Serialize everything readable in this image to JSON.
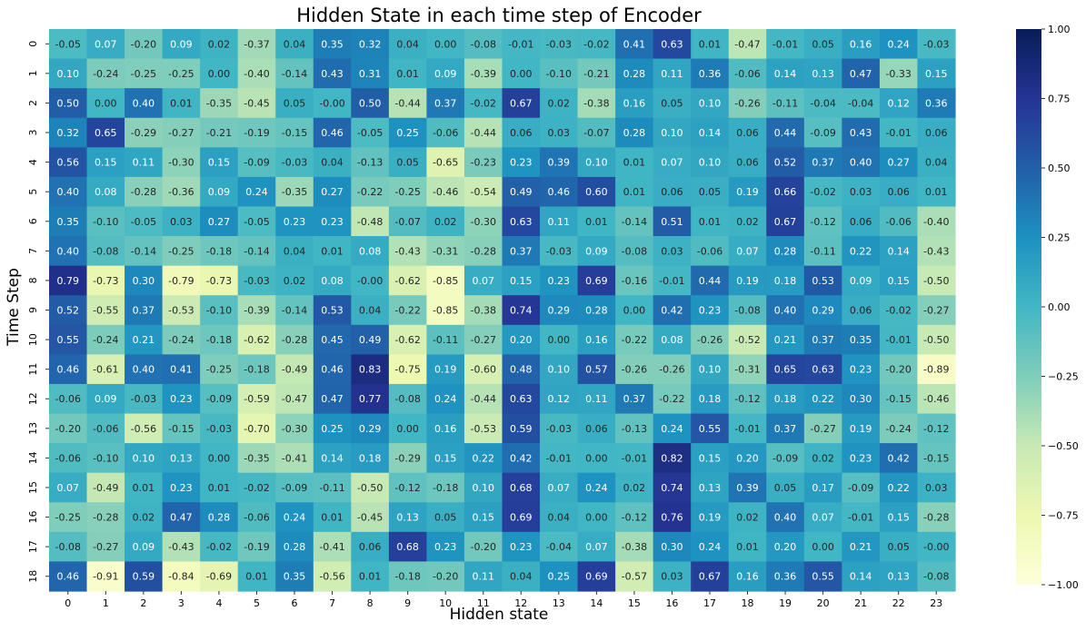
{
  "chart_data": {
    "type": "heatmap",
    "title": "Hidden State in each time step of Encoder",
    "xlabel": "Hidden state",
    "ylabel": "Time Step",
    "x_categories": [
      "0",
      "1",
      "2",
      "3",
      "4",
      "5",
      "6",
      "7",
      "8",
      "9",
      "10",
      "11",
      "12",
      "13",
      "14",
      "15",
      "16",
      "17",
      "18",
      "19",
      "20",
      "21",
      "22",
      "23"
    ],
    "y_categories": [
      "0",
      "1",
      "2",
      "3",
      "4",
      "5",
      "6",
      "7",
      "8",
      "9",
      "10",
      "11",
      "12",
      "13",
      "14",
      "15",
      "16",
      "17",
      "18"
    ],
    "colormap": "YlGnBu",
    "vmin": -1.0,
    "vmax": 1.0,
    "colorbar_ticks": [
      "1.00",
      "0.75",
      "0.50",
      "0.25",
      "0.00",
      "−0.25",
      "−0.50",
      "−0.75",
      "−1.00"
    ],
    "colorbar_tick_values": [
      1.0,
      0.75,
      0.5,
      0.25,
      0.0,
      -0.25,
      -0.5,
      -0.75,
      -1.0
    ],
    "values": [
      [
        -0.05,
        0.07,
        -0.2,
        0.09,
        0.02,
        -0.37,
        0.04,
        0.35,
        0.32,
        0.04,
        0.0,
        -0.08,
        -0.01,
        -0.03,
        -0.02,
        0.41,
        0.63,
        0.01,
        -0.47,
        -0.01,
        0.05,
        0.16,
        0.24,
        -0.03
      ],
      [
        0.1,
        -0.24,
        -0.25,
        -0.25,
        0.0,
        -0.4,
        -0.14,
        0.43,
        0.31,
        0.01,
        0.09,
        -0.39,
        0.0,
        -0.1,
        -0.21,
        0.28,
        0.11,
        0.36,
        -0.06,
        0.14,
        0.13,
        0.47,
        -0.33,
        0.15
      ],
      [
        0.5,
        0.0,
        0.4,
        0.01,
        -0.35,
        -0.45,
        0.05,
        -0.0,
        0.5,
        -0.44,
        0.37,
        -0.02,
        0.67,
        0.02,
        -0.38,
        0.16,
        0.05,
        0.1,
        -0.26,
        -0.11,
        -0.04,
        -0.04,
        0.12,
        0.36
      ],
      [
        0.32,
        0.65,
        -0.29,
        -0.27,
        -0.21,
        -0.19,
        -0.15,
        0.46,
        -0.05,
        0.25,
        -0.06,
        -0.44,
        0.06,
        0.03,
        -0.07,
        0.28,
        0.1,
        0.14,
        0.06,
        0.44,
        -0.09,
        0.43,
        -0.01,
        0.06
      ],
      [
        0.56,
        0.15,
        0.11,
        -0.3,
        0.15,
        -0.09,
        -0.03,
        0.04,
        -0.13,
        0.05,
        -0.65,
        -0.23,
        0.23,
        0.39,
        0.1,
        0.01,
        0.07,
        0.1,
        0.06,
        0.52,
        0.37,
        0.4,
        0.27,
        0.04
      ],
      [
        0.4,
        0.08,
        -0.28,
        -0.36,
        0.09,
        0.24,
        -0.35,
        0.27,
        -0.22,
        -0.25,
        -0.46,
        -0.54,
        0.49,
        0.46,
        0.6,
        0.01,
        0.06,
        0.05,
        0.19,
        0.66,
        -0.02,
        0.03,
        0.06,
        0.01
      ],
      [
        0.35,
        -0.1,
        -0.05,
        0.03,
        0.27,
        -0.05,
        0.23,
        0.23,
        -0.48,
        -0.07,
        0.02,
        -0.3,
        0.63,
        0.11,
        0.01,
        -0.14,
        0.51,
        0.01,
        0.02,
        0.67,
        -0.12,
        0.06,
        -0.06,
        -0.4
      ],
      [
        0.4,
        -0.08,
        -0.14,
        -0.25,
        -0.18,
        -0.14,
        0.04,
        0.01,
        0.08,
        -0.43,
        -0.31,
        -0.28,
        0.37,
        -0.03,
        0.09,
        -0.08,
        0.03,
        -0.06,
        0.07,
        0.28,
        -0.11,
        0.22,
        0.14,
        -0.43
      ],
      [
        0.79,
        -0.73,
        0.3,
        -0.79,
        -0.73,
        -0.03,
        0.02,
        0.08,
        -0.0,
        -0.62,
        -0.85,
        0.07,
        0.15,
        0.23,
        0.69,
        -0.16,
        -0.01,
        0.44,
        0.19,
        0.18,
        0.53,
        0.09,
        0.15,
        -0.5
      ],
      [
        0.52,
        -0.55,
        0.37,
        -0.53,
        -0.1,
        -0.39,
        -0.14,
        0.53,
        0.04,
        -0.22,
        -0.85,
        -0.38,
        0.74,
        0.29,
        0.28,
        0.0,
        0.42,
        0.23,
        -0.08,
        0.4,
        0.29,
        0.06,
        -0.02,
        -0.27
      ],
      [
        0.55,
        -0.24,
        0.21,
        -0.24,
        -0.18,
        -0.62,
        -0.28,
        0.45,
        0.49,
        -0.62,
        -0.11,
        -0.27,
        0.2,
        0.0,
        0.16,
        -0.22,
        0.08,
        -0.26,
        -0.52,
        0.21,
        0.37,
        0.35,
        -0.01,
        -0.5
      ],
      [
        0.46,
        -0.61,
        0.4,
        0.41,
        -0.25,
        -0.18,
        -0.49,
        0.46,
        0.83,
        -0.75,
        0.19,
        -0.6,
        0.48,
        0.1,
        0.57,
        -0.26,
        -0.26,
        0.1,
        -0.31,
        0.65,
        0.63,
        0.23,
        -0.2,
        -0.89
      ],
      [
        -0.06,
        0.09,
        -0.03,
        0.23,
        -0.09,
        -0.59,
        -0.47,
        0.47,
        0.77,
        -0.08,
        0.24,
        -0.44,
        0.63,
        0.12,
        0.11,
        0.37,
        -0.22,
        0.18,
        -0.12,
        0.18,
        0.22,
        0.3,
        -0.15,
        -0.46
      ],
      [
        -0.2,
        -0.06,
        -0.56,
        -0.15,
        -0.03,
        -0.7,
        -0.3,
        0.25,
        0.29,
        0.0,
        0.16,
        -0.53,
        0.59,
        -0.03,
        0.06,
        -0.13,
        0.24,
        0.55,
        -0.01,
        0.37,
        -0.27,
        0.19,
        -0.24,
        -0.12
      ],
      [
        -0.06,
        -0.1,
        0.1,
        0.13,
        0.0,
        -0.35,
        -0.41,
        0.14,
        0.18,
        -0.29,
        0.15,
        0.22,
        0.42,
        -0.01,
        0.0,
        -0.01,
        0.82,
        0.15,
        0.2,
        -0.09,
        0.02,
        0.23,
        0.42,
        -0.15
      ],
      [
        0.07,
        -0.49,
        0.01,
        0.23,
        0.01,
        -0.02,
        -0.09,
        -0.11,
        -0.5,
        -0.12,
        -0.18,
        0.1,
        0.68,
        0.07,
        0.24,
        0.02,
        0.74,
        0.13,
        0.39,
        0.05,
        0.17,
        -0.09,
        0.22,
        0.03
      ],
      [
        -0.25,
        -0.28,
        0.02,
        0.47,
        0.28,
        -0.06,
        0.24,
        0.01,
        -0.45,
        0.13,
        0.05,
        0.15,
        0.69,
        0.04,
        0.0,
        -0.12,
        0.76,
        0.19,
        0.02,
        0.4,
        0.07,
        -0.01,
        0.15,
        -0.28
      ],
      [
        -0.08,
        -0.27,
        0.09,
        -0.43,
        -0.02,
        -0.19,
        0.28,
        -0.41,
        0.06,
        0.68,
        0.23,
        -0.2,
        0.23,
        -0.04,
        0.07,
        -0.38,
        0.3,
        0.24,
        0.01,
        0.2,
        0.0,
        0.21,
        0.05,
        -0.0
      ],
      [
        0.46,
        -0.91,
        0.59,
        -0.84,
        -0.69,
        0.01,
        0.35,
        -0.56,
        0.01,
        -0.18,
        -0.2,
        0.11,
        0.04,
        0.25,
        0.69,
        -0.57,
        0.03,
        0.67,
        0.16,
        0.36,
        0.55,
        0.14,
        0.13,
        -0.08
      ]
    ],
    "cell_labels": [
      [
        "-0.05",
        "0.07",
        "-0.20",
        "0.09",
        "0.02",
        "-0.37",
        "0.04",
        "0.35",
        "0.32",
        "0.04",
        "0.00",
        "-0.08",
        "-0.01",
        "-0.03",
        "-0.02",
        "0.41",
        "0.63",
        "0.01",
        "-0.47",
        "-0.01",
        "0.05",
        "0.16",
        "0.24",
        "-0.03"
      ],
      [
        "0.10",
        "-0.24",
        "-0.25",
        "-0.25",
        "0.00",
        "-0.40",
        "-0.14",
        "0.43",
        "0.31",
        "0.01",
        "0.09",
        "-0.39",
        "0.00",
        "-0.10",
        "-0.21",
        "0.28",
        "0.11",
        "0.36",
        "-0.06",
        "0.14",
        "0.13",
        "0.47",
        "-0.33",
        "0.15"
      ],
      [
        "0.50",
        "0.00",
        "0.40",
        "0.01",
        "-0.35",
        "-0.45",
        "0.05",
        "-0.00",
        "0.50",
        "-0.44",
        "0.37",
        "-0.02",
        "0.67",
        "0.02",
        "-0.38",
        "0.16",
        "0.05",
        "0.10",
        "-0.26",
        "-0.11",
        "-0.04",
        "-0.04",
        "0.12",
        "0.36"
      ],
      [
        "0.32",
        "0.65",
        "-0.29",
        "-0.27",
        "-0.21",
        "-0.19",
        "-0.15",
        "0.46",
        "-0.05",
        "0.25",
        "-0.06",
        "-0.44",
        "0.06",
        "0.03",
        "-0.07",
        "0.28",
        "0.10",
        "0.14",
        "0.06",
        "0.44",
        "-0.09",
        "0.43",
        "-0.01",
        "0.06"
      ],
      [
        "0.56",
        "0.15",
        "0.11",
        "-0.30",
        "0.15",
        "-0.09",
        "-0.03",
        "0.04",
        "-0.13",
        "0.05",
        "-0.65",
        "-0.23",
        "0.23",
        "0.39",
        "0.10",
        "0.01",
        "0.07",
        "0.10",
        "0.06",
        "0.52",
        "0.37",
        "0.40",
        "0.27",
        "0.04"
      ],
      [
        "0.40",
        "0.08",
        "-0.28",
        "-0.36",
        "0.09",
        "0.24",
        "-0.35",
        "0.27",
        "-0.22",
        "-0.25",
        "-0.46",
        "-0.54",
        "0.49",
        "0.46",
        "0.60",
        "0.01",
        "0.06",
        "0.05",
        "0.19",
        "0.66",
        "-0.02",
        "0.03",
        "0.06",
        "0.01"
      ],
      [
        "0.35",
        "-0.10",
        "-0.05",
        "0.03",
        "0.27",
        "-0.05",
        "0.23",
        "0.23",
        "-0.48",
        "-0.07",
        "0.02",
        "-0.30",
        "0.63",
        "0.11",
        "0.01",
        "-0.14",
        "0.51",
        "0.01",
        "0.02",
        "0.67",
        "-0.12",
        "0.06",
        "-0.06",
        "-0.40"
      ],
      [
        "0.40",
        "-0.08",
        "-0.14",
        "-0.25",
        "-0.18",
        "-0.14",
        "0.04",
        "0.01",
        "0.08",
        "-0.43",
        "-0.31",
        "-0.28",
        "0.37",
        "-0.03",
        "0.09",
        "-0.08",
        "0.03",
        "-0.06",
        "0.07",
        "0.28",
        "-0.11",
        "0.22",
        "0.14",
        "-0.43"
      ],
      [
        "0.79",
        "-0.73",
        "0.30",
        "-0.79",
        "-0.73",
        "-0.03",
        "0.02",
        "0.08",
        "-0.00",
        "-0.62",
        "-0.85",
        "0.07",
        "0.15",
        "0.23",
        "0.69",
        "-0.16",
        "-0.01",
        "0.44",
        "0.19",
        "0.18",
        "0.53",
        "0.09",
        "0.15",
        "-0.50"
      ],
      [
        "0.52",
        "-0.55",
        "0.37",
        "-0.53",
        "-0.10",
        "-0.39",
        "-0.14",
        "0.53",
        "0.04",
        "-0.22",
        "-0.85",
        "-0.38",
        "0.74",
        "0.29",
        "0.28",
        "0.00",
        "0.42",
        "0.23",
        "-0.08",
        "0.40",
        "0.29",
        "0.06",
        "-0.02",
        "-0.27"
      ],
      [
        "0.55",
        "-0.24",
        "0.21",
        "-0.24",
        "-0.18",
        "-0.62",
        "-0.28",
        "0.45",
        "0.49",
        "-0.62",
        "-0.11",
        "-0.27",
        "0.20",
        "0.00",
        "0.16",
        "-0.22",
        "0.08",
        "-0.26",
        "-0.52",
        "0.21",
        "0.37",
        "0.35",
        "-0.01",
        "-0.50"
      ],
      [
        "0.46",
        "-0.61",
        "0.40",
        "0.41",
        "-0.25",
        "-0.18",
        "-0.49",
        "0.46",
        "0.83",
        "-0.75",
        "0.19",
        "-0.60",
        "0.48",
        "0.10",
        "0.57",
        "-0.26",
        "-0.26",
        "0.10",
        "-0.31",
        "0.65",
        "0.63",
        "0.23",
        "-0.20",
        "-0.89"
      ],
      [
        "-0.06",
        "0.09",
        "-0.03",
        "0.23",
        "-0.09",
        "-0.59",
        "-0.47",
        "0.47",
        "0.77",
        "-0.08",
        "0.24",
        "-0.44",
        "0.63",
        "0.12",
        "0.11",
        "0.37",
        "-0.22",
        "0.18",
        "-0.12",
        "0.18",
        "0.22",
        "0.30",
        "-0.15",
        "-0.46"
      ],
      [
        "-0.20",
        "-0.06",
        "-0.56",
        "-0.15",
        "-0.03",
        "-0.70",
        "-0.30",
        "0.25",
        "0.29",
        "0.00",
        "0.16",
        "-0.53",
        "0.59",
        "-0.03",
        "0.06",
        "-0.13",
        "0.24",
        "0.55",
        "-0.01",
        "0.37",
        "-0.27",
        "0.19",
        "-0.24",
        "-0.12"
      ],
      [
        "-0.06",
        "-0.10",
        "0.10",
        "0.13",
        "0.00",
        "-0.35",
        "-0.41",
        "0.14",
        "0.18",
        "-0.29",
        "0.15",
        "0.22",
        "0.42",
        "-0.01",
        "0.00",
        "-0.01",
        "0.82",
        "0.15",
        "0.20",
        "-0.09",
        "0.02",
        "0.23",
        "0.42",
        "-0.15"
      ],
      [
        "0.07",
        "-0.49",
        "0.01",
        "0.23",
        "0.01",
        "-0.02",
        "-0.09",
        "-0.11",
        "-0.50",
        "-0.12",
        "-0.18",
        "0.10",
        "0.68",
        "0.07",
        "0.24",
        "0.02",
        "0.74",
        "0.13",
        "0.39",
        "0.05",
        "0.17",
        "-0.09",
        "0.22",
        "0.03"
      ],
      [
        "-0.25",
        "-0.28",
        "0.02",
        "0.47",
        "0.28",
        "-0.06",
        "0.24",
        "0.01",
        "-0.45",
        "0.13",
        "0.05",
        "0.15",
        "0.69",
        "0.04",
        "0.00",
        "-0.12",
        "0.76",
        "0.19",
        "0.02",
        "0.40",
        "0.07",
        "-0.01",
        "0.15",
        "-0.28"
      ],
      [
        "-0.08",
        "-0.27",
        "0.09",
        "-0.43",
        "-0.02",
        "-0.19",
        "0.28",
        "-0.41",
        "0.06",
        "0.68",
        "0.23",
        "-0.20",
        "0.23",
        "-0.04",
        "0.07",
        "-0.38",
        "0.30",
        "0.24",
        "0.01",
        "0.20",
        "0.00",
        "0.21",
        "0.05",
        "-0.00"
      ],
      [
        "0.46",
        "-0.91",
        "0.59",
        "-0.84",
        "-0.69",
        "0.01",
        "0.35",
        "-0.56",
        "0.01",
        "-0.18",
        "-0.20",
        "0.11",
        "0.04",
        "0.25",
        "0.69",
        "-0.57",
        "0.03",
        "0.67",
        "0.16",
        "0.36",
        "0.55",
        "0.14",
        "0.13",
        "-0.08"
      ]
    ]
  }
}
